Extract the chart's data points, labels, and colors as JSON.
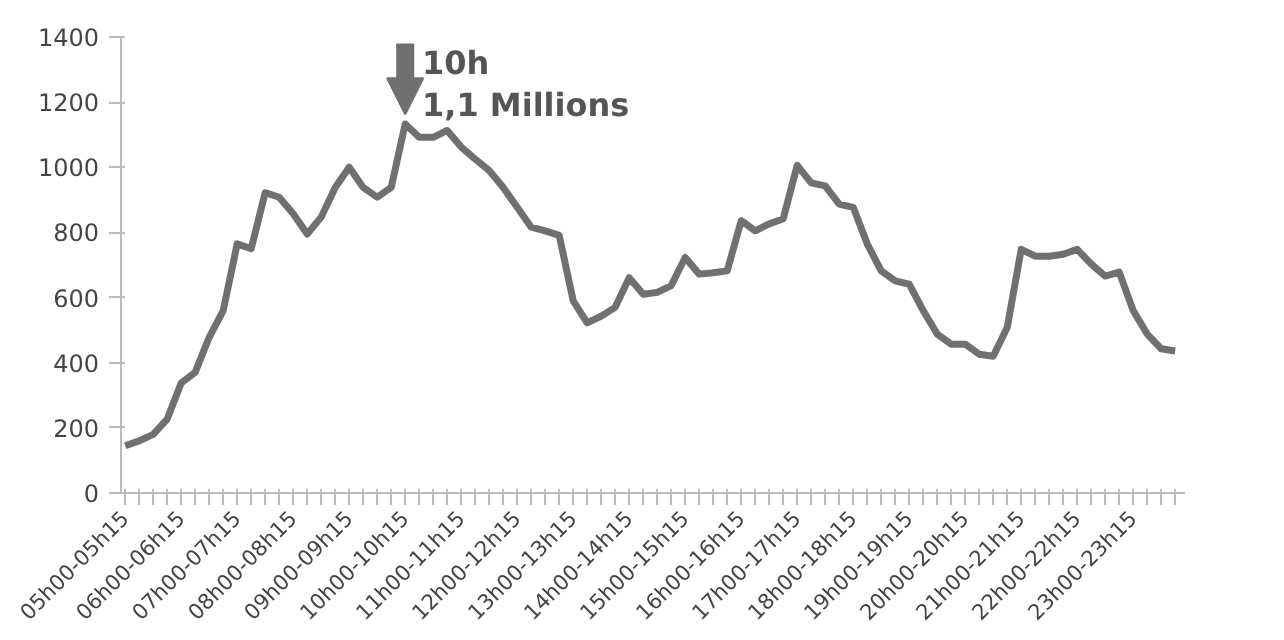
{
  "chart_data": {
    "type": "line",
    "categories": [
      "05h00-05h15",
      null,
      null,
      null,
      "06h00-06h15",
      null,
      null,
      null,
      "07h00-07h15",
      null,
      null,
      null,
      "08h00-08h15",
      null,
      null,
      null,
      "09h00-09h15",
      null,
      null,
      null,
      "10h00-10h15",
      null,
      null,
      null,
      "11h00-11h15",
      null,
      null,
      null,
      "12h00-12h15",
      null,
      null,
      null,
      "13h00-13h15",
      null,
      null,
      null,
      "14h00-14h15",
      null,
      null,
      null,
      "15h00-15h15",
      null,
      null,
      null,
      "16h00-16h15",
      null,
      null,
      null,
      "17h00-17h15",
      null,
      null,
      null,
      "18h00-18h15",
      null,
      null,
      null,
      "19h00-19h15",
      null,
      null,
      null,
      "20h00-20h15",
      null,
      null,
      null,
      "21h00-21h15",
      null,
      null,
      null,
      "22h00-22h15",
      null,
      null,
      null,
      "23h00-23h15",
      null,
      null,
      null
    ],
    "series": [
      {
        "color": "#707070",
        "values": [
          145,
          160,
          180,
          227,
          338,
          371,
          478,
          560,
          765,
          750,
          922,
          908,
          857,
          795,
          847,
          938,
          1000,
          938,
          908,
          938,
          1133,
          1092,
          1092,
          1113,
          1062,
          1025,
          990,
          938,
          877,
          816,
          805,
          791,
          590,
          522,
          543,
          570,
          661,
          610,
          616,
          637,
          723,
          672,
          676,
          682,
          836,
          805,
          826,
          842,
          1006,
          952,
          943,
          887,
          877,
          765,
          682,
          651,
          641,
          560,
          488,
          457,
          457,
          426,
          420,
          508,
          748,
          727,
          727,
          733,
          748,
          703,
          666,
          678,
          560,
          488,
          443,
          436
        ]
      }
    ],
    "ylim": [
      0,
      1400
    ],
    "yticks": [
      0,
      200,
      400,
      600,
      800,
      1000,
      1200,
      1400
    ],
    "grid": false,
    "marker": "none",
    "line_style": "solid",
    "annotations": [
      {
        "text": "10h\n1,1 Millions",
        "x": "10h00-10h15",
        "y": 1133
      }
    ]
  }
}
